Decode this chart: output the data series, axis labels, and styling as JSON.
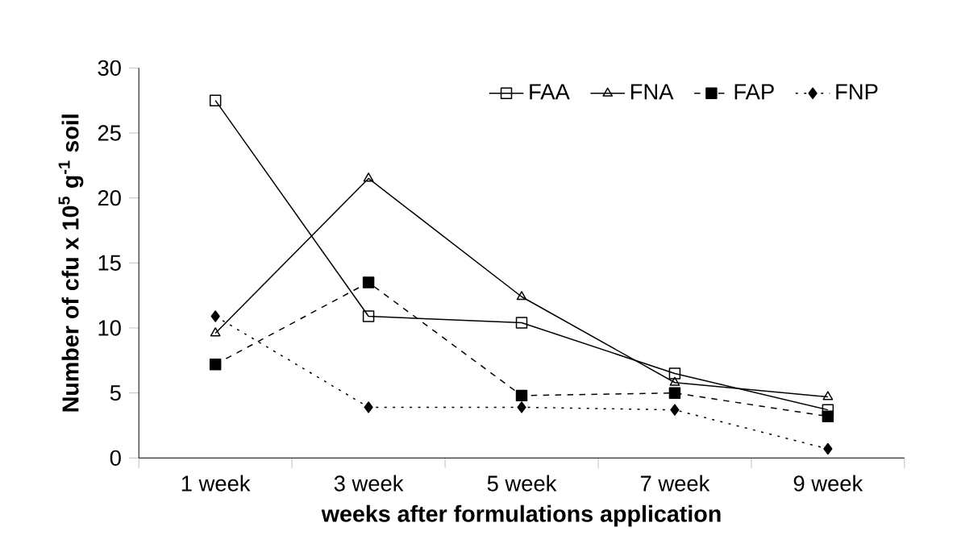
{
  "chart_data": {
    "type": "line",
    "xlabel": "weeks after formulations application",
    "ylabel": "Number of cfu x 10$^{5}$ g$^{-1}$ soil",
    "categories": [
      "1 week",
      "3 week",
      "5 week",
      "7 week",
      "9 week"
    ],
    "ylim": [
      0,
      30
    ],
    "yticks": [
      0,
      5,
      10,
      15,
      20,
      25,
      30
    ],
    "legend": "top right",
    "grid": false,
    "series": [
      {
        "name": "FAA",
        "color": "#000000",
        "values": [
          27.5,
          10.9,
          10.4,
          6.5,
          3.7
        ],
        "marker": "square",
        "line_style": "solid"
      },
      {
        "name": "FNA",
        "color": "#000000",
        "values": [
          9.6,
          21.5,
          12.4,
          5.8,
          4.7
        ],
        "marker": "triangle",
        "line_style": "solid"
      },
      {
        "name": "FAP",
        "color": "#000000",
        "values": [
          7.2,
          13.5,
          4.8,
          5.0,
          3.2
        ],
        "marker": "square",
        "line_style": "dashed"
      },
      {
        "name": "FNP",
        "color": "#000000",
        "values": [
          10.9,
          3.9,
          3.9,
          3.7,
          0.7
        ],
        "marker": "diamond",
        "line_style": "dotted"
      }
    ]
  }
}
